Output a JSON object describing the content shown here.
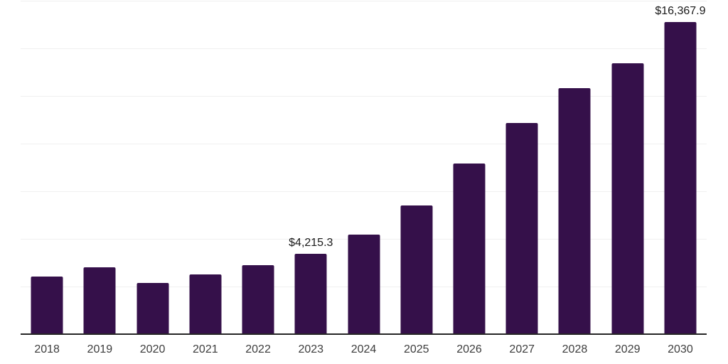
{
  "chart_data": {
    "type": "bar",
    "title": "",
    "xlabel": "",
    "ylabel": "",
    "categories": [
      "2018",
      "2019",
      "2020",
      "2021",
      "2022",
      "2023",
      "2024",
      "2025",
      "2026",
      "2027",
      "2028",
      "2029",
      "2030"
    ],
    "values": [
      3020,
      3510,
      2690,
      3130,
      3620,
      4215.3,
      5220,
      6750,
      8950,
      11080,
      12910,
      14220,
      16367.9
    ],
    "data_labels": {
      "2023": "$4,215.3",
      "2030": "$16,367.9"
    },
    "ylim": [
      0,
      17500
    ],
    "gridline_step": 2500,
    "grid": "horizontal",
    "legend_position": "none",
    "y_tick_labels_visible": false
  },
  "colors": {
    "bar": "#35104A",
    "axis": "#262626",
    "gridline": "#f0f0f0",
    "tick_label": "#3d3d3d",
    "data_label": "#1a1a1a",
    "background": "#ffffff"
  }
}
